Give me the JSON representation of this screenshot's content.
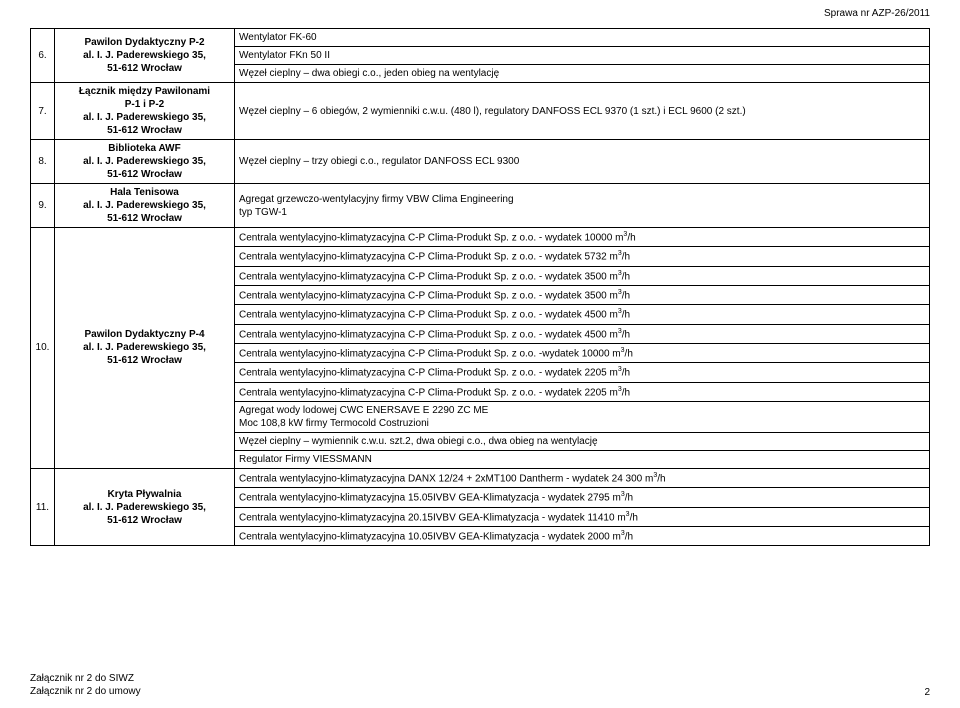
{
  "header": {
    "case_number": "Sprawa nr AZP-26/2011"
  },
  "footer": {
    "line1": "Załącznik nr 2 do SIWZ",
    "line2": "Załącznik nr 2 do umowy",
    "page": "2"
  },
  "table": {
    "col_widths": {
      "num": 24,
      "loc": 180
    },
    "border_color": "#000000",
    "font_size": 10,
    "rows": [
      {
        "num": "6.",
        "loc_html": "Pawilon Dydaktyczny P-2<br>al. I. J. Paderewskiego 35,<br>51-612 Wrocław",
        "descs": [
          "Wentylator FK-60",
          "Wentylator FKn 50 II",
          "Węzeł cieplny – dwa obiegi c.o., jeden obieg na wentylację"
        ]
      },
      {
        "num": "7.",
        "loc_html": "Łącznik między Pawilonami<br>P-1 i P-2<br>al. I. J. Paderewskiego 35,<br>51-612 Wrocław",
        "descs": [
          "Węzeł cieplny – 6 obiegów, 2 wymienniki c.w.u. (480 l), regulatory DANFOSS ECL 9370 (1 szt.) i ECL 9600 (2 szt.)"
        ]
      },
      {
        "num": "8.",
        "loc_html": "Biblioteka AWF<br>al. I. J. Paderewskiego 35,<br>51-612 Wrocław",
        "descs": [
          "Węzeł cieplny – trzy obiegi c.o., regulator DANFOSS ECL 9300"
        ]
      },
      {
        "num": "9.",
        "loc_html": "Hala Tenisowa<br>al. I. J. Paderewskiego 35,<br>51-612 Wrocław",
        "descs": [
          "Agregat grzewczo-wentylacyjny firmy VBW Clima Engineering<br>typ TGW-1"
        ]
      },
      {
        "num": "10.",
        "loc_html": "Pawilon Dydaktyczny P-4<br>al. I. J. Paderewskiego 35,<br>51-612 Wrocław",
        "descs": [
          "Centrala wentylacyjno-klimatyzacyjna C-P Clima-Produkt Sp. z o.o.  - wydatek 10000 m<sup>3</sup>/h",
          "Centrala wentylacyjno-klimatyzacyjna C-P Clima-Produkt Sp. z o.o.  - wydatek 5732 m<sup>3</sup>/h",
          "Centrala wentylacyjno-klimatyzacyjna C-P Clima-Produkt Sp. z o.o.  - wydatek 3500 m<sup>3</sup>/h",
          "Centrala wentylacyjno-klimatyzacyjna C-P Clima-Produkt Sp. z o.o.  - wydatek 3500 m<sup>3</sup>/h",
          "Centrala wentylacyjno-klimatyzacyjna C-P Clima-Produkt Sp. z o.o.  - wydatek 4500 m<sup>3</sup>/h",
          "Centrala wentylacyjno-klimatyzacyjna C-P Clima-Produkt Sp. z o.o.  - wydatek 4500 m<sup>3</sup>/h",
          "Centrala wentylacyjno-klimatyzacyjna C-P Clima-Produkt Sp. z o.o.  -wydatek 10000 m<sup>3</sup>/h",
          "Centrala wentylacyjno-klimatyzacyjna C-P Clima-Produkt Sp. z o.o.  - wydatek 2205 m<sup>3</sup>/h",
          "Centrala wentylacyjno-klimatyzacyjna C-P Clima-Produkt Sp. z o.o.  - wydatek 2205 m<sup>3</sup>/h",
          "Agregat wody lodowej CWC ENERSAVE E 2290 ZC ME<br>Moc 108,8 kW firmy Termocold Costruzioni",
          "Węzeł cieplny – wymiennik c.w.u. szt.2, dwa obiegi c.o., dwa obieg na wentylację",
          "Regulator Firmy VIESSMANN"
        ]
      },
      {
        "num": "11.",
        "loc_html": "Kryta Pływalnia<br>al. I. J. Paderewskiego 35,<br>51-612 Wrocław",
        "descs": [
          "Centrala wentylacyjno-klimatyzacyjna DANX 12/24 + 2xMT100 Dantherm - wydatek  24 300 m<sup>3</sup>/h",
          "Centrala wentylacyjno-klimatyzacyjna 15.05IVBV GEA-Klimatyzacja  - wydatek 2795 m<sup>3</sup>/h",
          "Centrala wentylacyjno-klimatyzacyjna 20.15IVBV GEA-Klimatyzacja  - wydatek 11410 m<sup>3</sup>/h",
          "Centrala wentylacyjno-klimatyzacyjna 10.05IVBV GEA-Klimatyzacja  - wydatek 2000 m<sup>3</sup>/h"
        ]
      }
    ]
  }
}
